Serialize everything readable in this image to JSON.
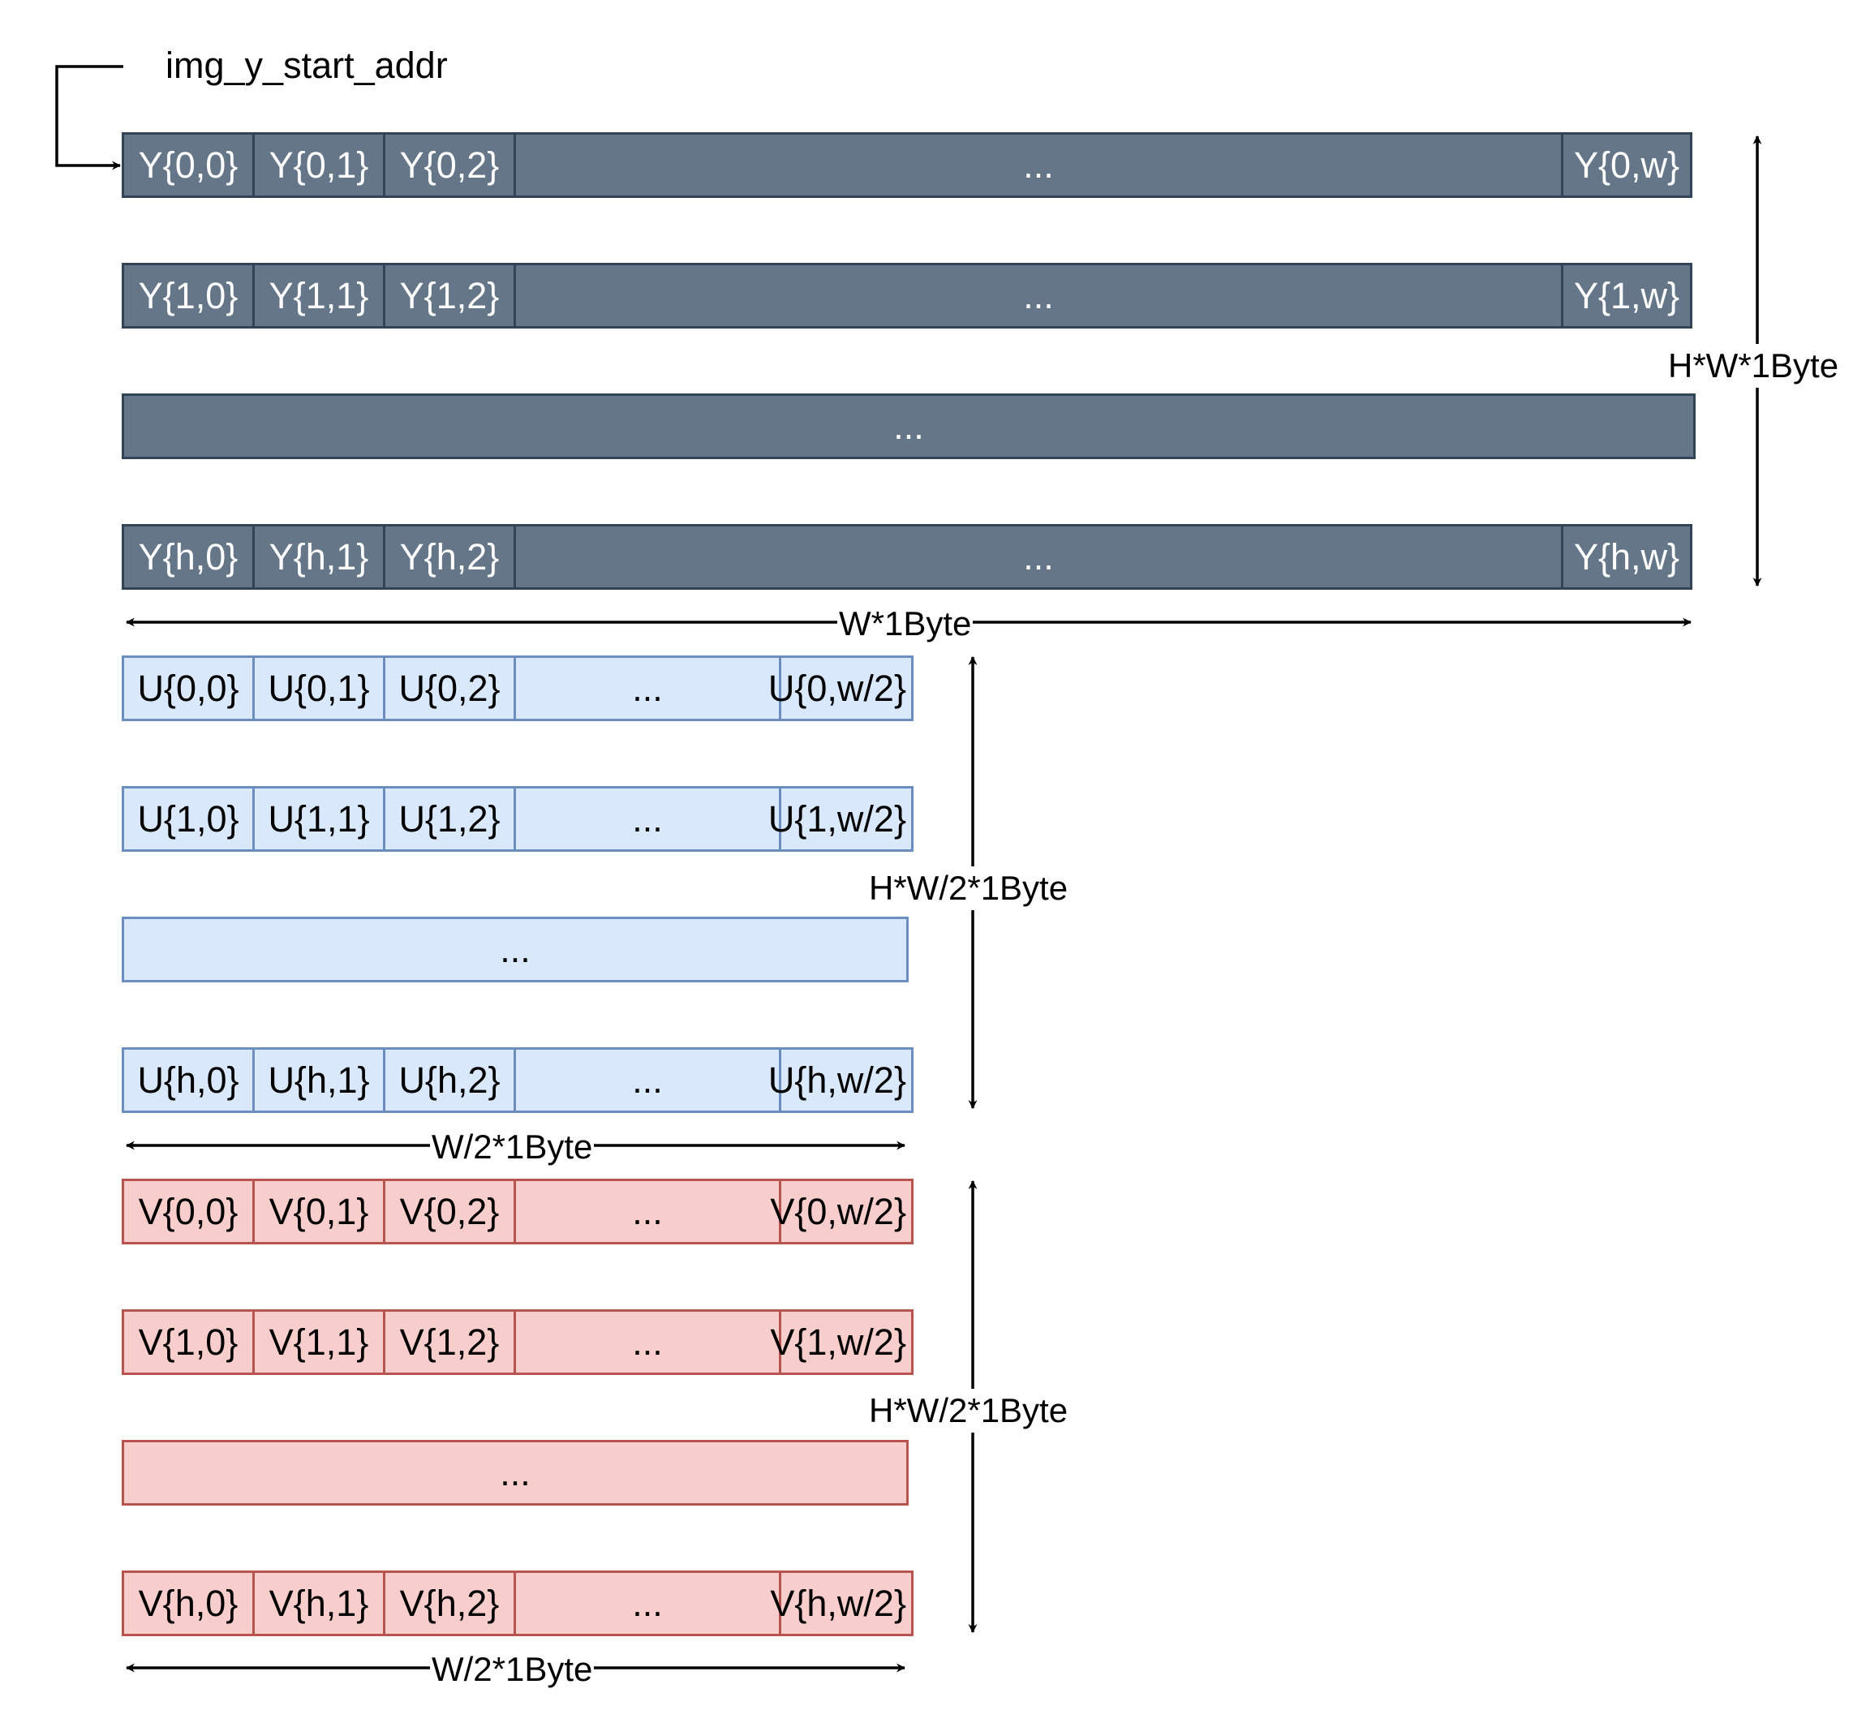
{
  "start_label": "img_y_start_addr",
  "colors": {
    "y_fill": "#647687",
    "y_stroke": "#314354",
    "u_fill": "#dae8fc",
    "u_stroke": "#6c8ebf",
    "v_fill": "#f8cecc",
    "v_stroke": "#b85450"
  },
  "y_plane": {
    "rows": [
      [
        "Y{0,0}",
        "Y{0,1}",
        "Y{0,2}",
        "...",
        "Y{0,w}"
      ],
      [
        "Y{1,0}",
        "Y{1,1}",
        "Y{1,2}",
        "...",
        "Y{1,w}"
      ],
      [
        "..."
      ],
      [
        "Y{h,0}",
        "Y{h,1}",
        "Y{h,2}",
        "...",
        "Y{h,w}"
      ]
    ],
    "height_label": "H*W*1Byte",
    "width_label": "W*1Byte"
  },
  "u_plane": {
    "rows": [
      [
        "U{0,0}",
        "U{0,1}",
        "U{0,2}",
        "...",
        "U{0,w/2}"
      ],
      [
        "U{1,0}",
        "U{1,1}",
        "U{1,2}",
        "...",
        "U{1,w/2}"
      ],
      [
        "..."
      ],
      [
        "U{h,0}",
        "U{h,1}",
        "U{h,2}",
        "...",
        "U{h,w/2}"
      ]
    ],
    "height_label": "H*W/2*1Byte",
    "width_label": "W/2*1Byte"
  },
  "v_plane": {
    "rows": [
      [
        "V{0,0}",
        "V{0,1}",
        "V{0,2}",
        "...",
        "V{0,w/2}"
      ],
      [
        "V{1,0}",
        "V{1,1}",
        "V{1,2}",
        "...",
        "V{1,w/2}"
      ],
      [
        "..."
      ],
      [
        "V{h,0}",
        "V{h,1}",
        "V{h,2}",
        "...",
        "V{h,w/2}"
      ]
    ],
    "height_label": "H*W/2*1Byte",
    "width_label": "W/2*1Byte"
  }
}
